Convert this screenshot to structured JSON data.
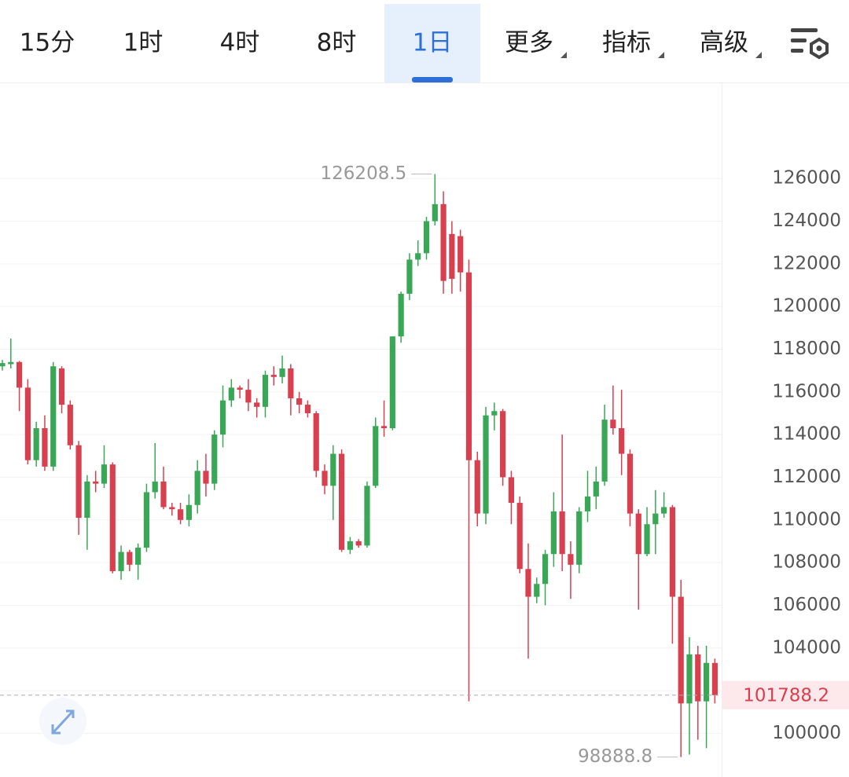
{
  "tabs": [
    "15分",
    "1时",
    "4时",
    "8时",
    "1日",
    "更多",
    "指标",
    "高级"
  ],
  "active_tab": 4,
  "chart_data": {
    "type": "candlestick",
    "up_color": "#3aa757",
    "down_color": "#d9404f",
    "ylim": [
      98100,
      130500
    ],
    "yticks": [
      100000,
      102000,
      104000,
      106000,
      108000,
      110000,
      112000,
      114000,
      116000,
      118000,
      120000,
      122000,
      124000,
      126000
    ],
    "grid": true,
    "ohlc": [
      [
        117200,
        117500,
        117000,
        117350
      ],
      [
        117300,
        118500,
        117100,
        117400
      ],
      [
        117400,
        117450,
        115100,
        116200
      ],
      [
        116200,
        116600,
        112600,
        112800
      ],
      [
        112800,
        114600,
        112500,
        114300
      ],
      [
        114300,
        114900,
        112300,
        112500
      ],
      [
        112500,
        117400,
        112300,
        117200
      ],
      [
        117100,
        117200,
        115000,
        115400
      ],
      [
        115400,
        115600,
        113300,
        113500
      ],
      [
        113500,
        113700,
        109300,
        110100
      ],
      [
        110100,
        112100,
        108600,
        111800
      ],
      [
        111800,
        112300,
        111300,
        111700
      ],
      [
        111700,
        113500,
        111500,
        112600
      ],
      [
        112600,
        112700,
        107500,
        107600
      ],
      [
        107600,
        108800,
        107200,
        108500
      ],
      [
        108500,
        108600,
        107600,
        107900
      ],
      [
        107900,
        108900,
        107200,
        108700
      ],
      [
        108700,
        111700,
        108500,
        111300
      ],
      [
        111300,
        113600,
        111000,
        111800
      ],
      [
        111800,
        112500,
        110500,
        110600
      ],
      [
        110600,
        110800,
        110200,
        110500
      ],
      [
        110500,
        110800,
        109800,
        110000
      ],
      [
        110000,
        111200,
        109700,
        110700
      ],
      [
        110700,
        112800,
        110300,
        112300
      ],
      [
        112300,
        113100,
        111100,
        111700
      ],
      [
        111700,
        114200,
        111400,
        114000
      ],
      [
        114000,
        116300,
        113400,
        115600
      ],
      [
        115600,
        116600,
        115300,
        116200
      ],
      [
        116200,
        116300,
        115700,
        116100
      ],
      [
        116100,
        116600,
        115100,
        115500
      ],
      [
        115500,
        115700,
        114800,
        115300
      ],
      [
        115300,
        117000,
        114800,
        116800
      ],
      [
        116800,
        117200,
        116300,
        116700
      ],
      [
        116700,
        117700,
        116400,
        117100
      ],
      [
        117100,
        117300,
        114900,
        115700
      ],
      [
        115700,
        116000,
        115000,
        115400
      ],
      [
        115400,
        115600,
        114800,
        115000
      ],
      [
        115000,
        115100,
        112000,
        112300
      ],
      [
        112300,
        112600,
        111200,
        111600
      ],
      [
        111600,
        113500,
        110000,
        113100
      ],
      [
        113100,
        113300,
        108500,
        108600
      ],
      [
        108600,
        109200,
        108400,
        109000
      ],
      [
        109000,
        109100,
        108700,
        108800
      ],
      [
        108800,
        111800,
        108700,
        111600
      ],
      [
        111600,
        114800,
        111500,
        114400
      ],
      [
        114400,
        115600,
        113900,
        114300
      ],
      [
        114300,
        118600,
        114200,
        118600
      ],
      [
        118600,
        120700,
        118300,
        120600
      ],
      [
        120600,
        122500,
        120300,
        122200
      ],
      [
        122200,
        123100,
        121900,
        122500
      ],
      [
        122500,
        124200,
        122200,
        124000
      ],
      [
        124000,
        126208.5,
        123800,
        124800
      ],
      [
        124800,
        125400,
        120600,
        121200
      ],
      [
        123400,
        124000,
        120600,
        121300
      ],
      [
        123300,
        123600,
        120700,
        121600
      ],
      [
        121600,
        122200,
        101500,
        112800
      ],
      [
        112800,
        113200,
        109700,
        110300
      ],
      [
        110300,
        115300,
        109800,
        114900
      ],
      [
        114900,
        115500,
        114200,
        115100
      ],
      [
        115100,
        115200,
        111600,
        112000
      ],
      [
        112000,
        112300,
        109800,
        110800
      ],
      [
        110800,
        111100,
        107500,
        107700
      ],
      [
        107700,
        108900,
        103500,
        106400
      ],
      [
        106400,
        107300,
        106100,
        107000
      ],
      [
        107000,
        108600,
        106000,
        108400
      ],
      [
        108400,
        111300,
        107800,
        110400
      ],
      [
        110400,
        114000,
        107600,
        108400
      ],
      [
        108400,
        109000,
        106300,
        107900
      ],
      [
        107900,
        110600,
        107500,
        110400
      ],
      [
        110400,
        112300,
        109900,
        111100
      ],
      [
        111100,
        112500,
        110500,
        111800
      ],
      [
        111800,
        115400,
        111600,
        114700
      ],
      [
        114700,
        116300,
        114000,
        114300
      ],
      [
        114300,
        116100,
        112100,
        113100
      ],
      [
        113100,
        113300,
        109700,
        110300
      ],
      [
        110300,
        110500,
        105800,
        108400
      ],
      [
        108400,
        110600,
        108300,
        109800
      ],
      [
        109800,
        111400,
        108400,
        110300
      ],
      [
        110300,
        111300,
        110100,
        110600
      ],
      [
        110600,
        110700,
        104200,
        106400
      ],
      [
        106400,
        107200,
        98888.8,
        101400
      ],
      [
        101400,
        104500,
        99000,
        103700
      ],
      [
        103700,
        104100,
        99700,
        101500
      ],
      [
        101500,
        104100,
        99300,
        103300
      ],
      [
        103300,
        103500,
        101400,
        101788.2
      ]
    ]
  }
}
